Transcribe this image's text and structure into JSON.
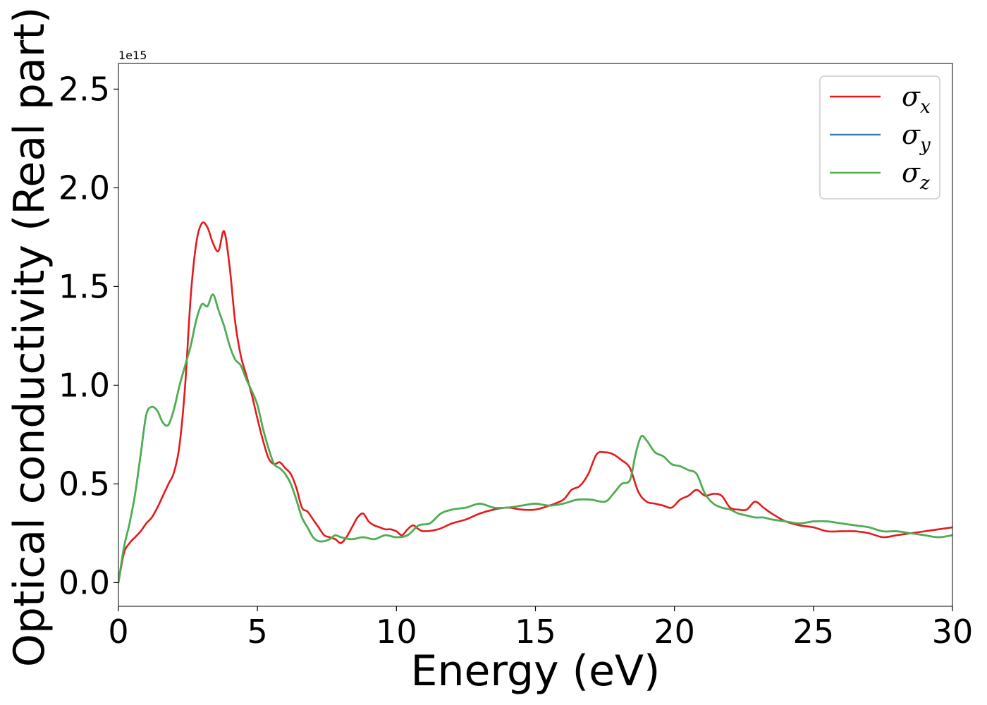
{
  "chart_data": {
    "type": "line",
    "xlabel": "Energy (eV)",
    "ylabel": "Optical conductivity (Real part)",
    "y_offset_label": "1e15",
    "xlim": [
      0,
      30
    ],
    "ylim": [
      -0.12,
      2.63
    ],
    "xticks": [
      0,
      5,
      10,
      15,
      20,
      25,
      30
    ],
    "xtick_labels": [
      "0",
      "5",
      "10",
      "15",
      "20",
      "25",
      "30"
    ],
    "yticks": [
      0.0,
      0.5,
      1.0,
      1.5,
      2.0,
      2.5
    ],
    "ytick_labels": [
      "0.0",
      "0.5",
      "1.0",
      "1.5",
      "2.0",
      "2.5"
    ],
    "grid": false,
    "legend_position": "top-right",
    "legend": [
      {
        "symbol": "σ",
        "sub": "x",
        "color": "#e41a1c"
      },
      {
        "symbol": "σ",
        "sub": "y",
        "color": "#377eb8"
      },
      {
        "symbol": "σ",
        "sub": "z",
        "color": "#4daf4a"
      }
    ],
    "series": [
      {
        "color": "#e41a1c",
        "x": [
          0,
          0.2,
          0.4,
          0.6,
          0.8,
          1.0,
          1.2,
          1.4,
          1.6,
          1.8,
          2.0,
          2.2,
          2.4,
          2.6,
          2.8,
          3.0,
          3.2,
          3.4,
          3.6,
          3.8,
          4.0,
          4.2,
          4.4,
          4.6,
          4.8,
          5.0,
          5.2,
          5.4,
          5.6,
          5.8,
          6.0,
          6.2,
          6.4,
          6.6,
          6.8,
          7.0,
          7.2,
          7.4,
          7.6,
          7.8,
          8.0,
          8.2,
          8.4,
          8.6,
          8.8,
          9.0,
          9.2,
          9.4,
          9.6,
          9.8,
          10.0,
          10.2,
          10.4,
          10.6,
          10.8,
          11.0,
          11.5,
          12.0,
          12.5,
          13.0,
          13.5,
          14.0,
          14.5,
          15.0,
          15.5,
          16.0,
          16.3,
          16.6,
          16.9,
          17.2,
          17.5,
          17.8,
          18.1,
          18.4,
          18.7,
          19.0,
          19.3,
          19.6,
          19.9,
          20.2,
          20.5,
          20.8,
          21.1,
          21.4,
          21.7,
          22.0,
          22.3,
          22.6,
          22.9,
          23.2,
          23.5,
          24.0,
          24.5,
          25.0,
          25.5,
          26.0,
          26.5,
          27.0,
          27.5,
          28.0,
          28.5,
          29.0,
          29.5,
          30.0
        ],
        "y": [
          0.0,
          0.15,
          0.2,
          0.23,
          0.26,
          0.3,
          0.33,
          0.38,
          0.44,
          0.5,
          0.56,
          0.7,
          1.0,
          1.45,
          1.72,
          1.82,
          1.8,
          1.72,
          1.68,
          1.78,
          1.6,
          1.32,
          1.15,
          1.05,
          0.95,
          0.83,
          0.72,
          0.63,
          0.6,
          0.61,
          0.58,
          0.55,
          0.48,
          0.38,
          0.36,
          0.32,
          0.28,
          0.24,
          0.23,
          0.22,
          0.2,
          0.23,
          0.28,
          0.33,
          0.35,
          0.31,
          0.29,
          0.28,
          0.27,
          0.27,
          0.26,
          0.24,
          0.27,
          0.29,
          0.27,
          0.26,
          0.27,
          0.3,
          0.32,
          0.35,
          0.37,
          0.38,
          0.37,
          0.37,
          0.39,
          0.42,
          0.47,
          0.49,
          0.55,
          0.65,
          0.66,
          0.65,
          0.62,
          0.58,
          0.46,
          0.41,
          0.4,
          0.39,
          0.38,
          0.42,
          0.44,
          0.47,
          0.44,
          0.45,
          0.44,
          0.38,
          0.37,
          0.37,
          0.41,
          0.38,
          0.35,
          0.31,
          0.29,
          0.28,
          0.26,
          0.26,
          0.26,
          0.25,
          0.23,
          0.24,
          0.25,
          0.26,
          0.27,
          0.28
        ]
      },
      {
        "color": "#377eb8",
        "x": [
          0,
          0.2,
          0.4,
          0.6,
          0.8,
          1.0,
          1.2,
          1.4,
          1.6,
          1.8,
          2.0,
          2.2,
          2.4,
          2.6,
          2.8,
          3.0,
          3.2,
          3.4,
          3.6,
          3.8,
          4.0,
          4.2,
          4.4,
          4.6,
          4.8,
          5.0,
          5.2,
          5.4,
          5.6,
          5.8,
          6.0,
          6.2,
          6.4,
          6.6,
          6.8,
          7.0,
          7.2,
          7.4,
          7.6,
          7.8,
          8.0,
          8.4,
          8.8,
          9.2,
          9.6,
          10.0,
          10.4,
          10.8,
          11.2,
          11.6,
          12.0,
          12.5,
          13.0,
          13.5,
          14.0,
          14.5,
          15.0,
          15.5,
          16.0,
          16.5,
          17.0,
          17.5,
          17.8,
          18.1,
          18.4,
          18.6,
          18.8,
          19.0,
          19.3,
          19.6,
          19.9,
          20.2,
          20.5,
          20.8,
          21.1,
          21.4,
          21.7,
          22.0,
          22.3,
          22.6,
          22.9,
          23.2,
          23.5,
          24.0,
          24.5,
          25.0,
          25.5,
          26.0,
          26.5,
          27.0,
          27.5,
          28.0,
          28.5,
          29.0,
          29.5,
          30.0
        ],
        "y": [
          0.0,
          0.18,
          0.3,
          0.45,
          0.65,
          0.85,
          0.89,
          0.87,
          0.81,
          0.8,
          0.88,
          1.0,
          1.1,
          1.2,
          1.33,
          1.41,
          1.4,
          1.46,
          1.38,
          1.3,
          1.2,
          1.13,
          1.1,
          1.03,
          0.97,
          0.9,
          0.78,
          0.68,
          0.6,
          0.58,
          0.55,
          0.5,
          0.42,
          0.33,
          0.28,
          0.23,
          0.21,
          0.21,
          0.22,
          0.24,
          0.23,
          0.22,
          0.23,
          0.22,
          0.24,
          0.23,
          0.24,
          0.29,
          0.3,
          0.35,
          0.37,
          0.38,
          0.4,
          0.38,
          0.38,
          0.39,
          0.4,
          0.39,
          0.4,
          0.42,
          0.42,
          0.41,
          0.45,
          0.5,
          0.52,
          0.65,
          0.74,
          0.72,
          0.66,
          0.64,
          0.6,
          0.59,
          0.57,
          0.55,
          0.45,
          0.4,
          0.38,
          0.37,
          0.35,
          0.34,
          0.33,
          0.33,
          0.32,
          0.31,
          0.3,
          0.31,
          0.31,
          0.3,
          0.29,
          0.28,
          0.26,
          0.26,
          0.25,
          0.24,
          0.23,
          0.24
        ]
      },
      {
        "color": "#4daf4a",
        "x": [
          0,
          0.2,
          0.4,
          0.6,
          0.8,
          1.0,
          1.2,
          1.4,
          1.6,
          1.8,
          2.0,
          2.2,
          2.4,
          2.6,
          2.8,
          3.0,
          3.2,
          3.4,
          3.6,
          3.8,
          4.0,
          4.2,
          4.4,
          4.6,
          4.8,
          5.0,
          5.2,
          5.4,
          5.6,
          5.8,
          6.0,
          6.2,
          6.4,
          6.6,
          6.8,
          7.0,
          7.2,
          7.4,
          7.6,
          7.8,
          8.0,
          8.4,
          8.8,
          9.2,
          9.6,
          10.0,
          10.4,
          10.8,
          11.2,
          11.6,
          12.0,
          12.5,
          13.0,
          13.5,
          14.0,
          14.5,
          15.0,
          15.5,
          16.0,
          16.5,
          17.0,
          17.5,
          17.8,
          18.1,
          18.4,
          18.6,
          18.8,
          19.0,
          19.3,
          19.6,
          19.9,
          20.2,
          20.5,
          20.8,
          21.1,
          21.4,
          21.7,
          22.0,
          22.3,
          22.6,
          22.9,
          23.2,
          23.5,
          24.0,
          24.5,
          25.0,
          25.5,
          26.0,
          26.5,
          27.0,
          27.5,
          28.0,
          28.5,
          29.0,
          29.5,
          30.0
        ],
        "y": [
          0.0,
          0.18,
          0.3,
          0.45,
          0.65,
          0.85,
          0.89,
          0.87,
          0.81,
          0.8,
          0.88,
          1.0,
          1.1,
          1.2,
          1.33,
          1.41,
          1.4,
          1.46,
          1.38,
          1.3,
          1.2,
          1.13,
          1.1,
          1.03,
          0.97,
          0.9,
          0.78,
          0.68,
          0.6,
          0.58,
          0.55,
          0.5,
          0.42,
          0.33,
          0.28,
          0.23,
          0.21,
          0.21,
          0.22,
          0.24,
          0.23,
          0.22,
          0.23,
          0.22,
          0.24,
          0.23,
          0.24,
          0.29,
          0.3,
          0.35,
          0.37,
          0.38,
          0.4,
          0.38,
          0.38,
          0.39,
          0.4,
          0.39,
          0.4,
          0.42,
          0.42,
          0.41,
          0.45,
          0.5,
          0.52,
          0.65,
          0.74,
          0.72,
          0.66,
          0.64,
          0.6,
          0.59,
          0.57,
          0.55,
          0.45,
          0.4,
          0.38,
          0.37,
          0.35,
          0.34,
          0.33,
          0.33,
          0.32,
          0.31,
          0.3,
          0.31,
          0.31,
          0.3,
          0.29,
          0.28,
          0.26,
          0.26,
          0.25,
          0.24,
          0.23,
          0.24
        ]
      }
    ]
  }
}
